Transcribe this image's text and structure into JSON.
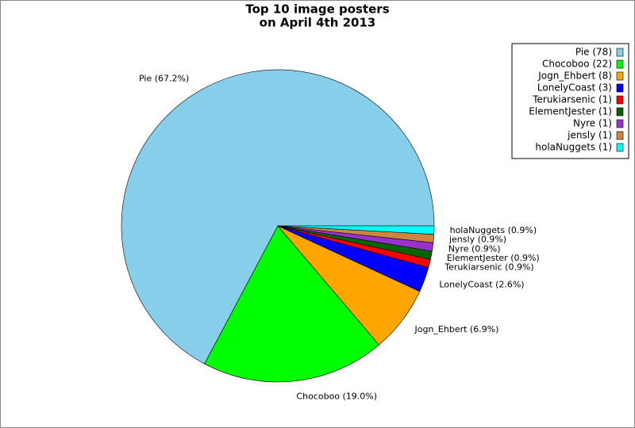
{
  "chart_data": {
    "type": "pie",
    "title": [
      "Top 10 image posters",
      "on April 4th 2013"
    ],
    "values": [
      78,
      22,
      8,
      3,
      1,
      1,
      1,
      1,
      1
    ],
    "legend_labels": [
      "Pie (78)",
      "Chocoboo (22)",
      "Jogn_Ehbert (8)",
      "LonelyCoast (3)",
      "Terukiarsenic (1)",
      "ElementJester (1)",
      "Nyre (1)",
      "jensly (1)",
      "holaNuggets (1)"
    ],
    "slice_labels": [
      "Pie (67.2%)",
      "Chocoboo (19.0%)",
      "Jogn_Ehbert (6.9%)",
      "LonelyCoast (2.6%)",
      "Terukiarsenic (0.9%)",
      "ElementJester (0.9%)",
      "Nyre (0.9%)",
      "jensly (0.9%)",
      "holaNuggets (0.9%)"
    ],
    "colors": [
      "#87ceeb",
      "#00ff00",
      "#ffa500",
      "#0000ff",
      "#ff0000",
      "#006400",
      "#9932cc",
      "#cd853f",
      "#00ffff"
    ],
    "legend_position": "upper right"
  }
}
